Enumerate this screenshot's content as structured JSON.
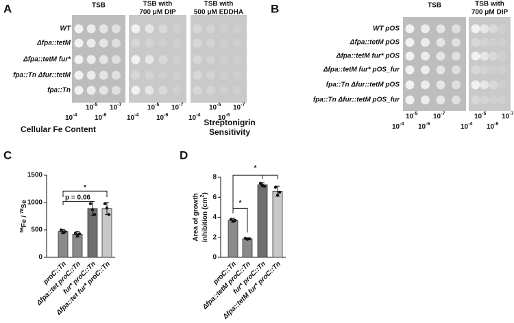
{
  "panels": [
    {
      "letter": "A",
      "strains": [
        "WT",
        "Δfpa::tetM",
        "Δfpa::tetM fur*",
        "fpa::Tn Δfur::tetM",
        "fpa::Tn"
      ],
      "plates": [
        [
          "TSB"
        ],
        [
          "TSB with",
          "700 μM DIP"
        ],
        [
          "TSB with",
          "500 μM EDDHA"
        ]
      ],
      "dilutions": [
        {
          "base": "10",
          "exp": "-5"
        },
        {
          "base": "10",
          "exp": "-7"
        },
        {
          "base": "10",
          "exp": "-4"
        },
        {
          "base": "10",
          "exp": "-6"
        }
      ]
    },
    {
      "letter": "B",
      "strains": [
        "WT pOS",
        "Δfpa::tetM pOS",
        "Δfpa::tetM fur* pOS",
        "Δfpa::tetM fur* pOS_fur",
        "fpa::Tn Δfur::tetM pOS",
        "fpa::Tn Δfur::tetM pOS_fur"
      ],
      "plates": [
        [
          "TSB"
        ],
        [
          "TSB with",
          "700 μM DIP"
        ]
      ],
      "dilutions": [
        {
          "base": "10",
          "exp": "-5"
        },
        {
          "base": "10",
          "exp": "-7"
        },
        {
          "base": "10",
          "exp": "-4"
        },
        {
          "base": "10",
          "exp": "-6"
        }
      ]
    }
  ],
  "chart_data": [
    {
      "type": "bar",
      "letter": "C",
      "title": [
        "Cellular Fe Content"
      ],
      "ylabel": [
        "56",
        "Fe / ",
        "78",
        "Se"
      ],
      "categories": [
        "proC::Tn",
        "Δfpa::tet proC::Tn",
        "fur* proC::Tn",
        "Δfpa::tet fur* proC::Tn"
      ],
      "values": [
        470,
        420,
        890,
        890
      ],
      "errors": [
        40,
        50,
        130,
        110
      ],
      "points": [
        [
          500,
          460,
          470
        ],
        [
          440,
          390,
          430
        ],
        [
          980,
          870,
          780
        ],
        [
          980,
          900,
          780
        ]
      ],
      "colors": [
        "#8a8a8a",
        "#8a8a8a",
        "#6f6f6f",
        "#c8c8c8"
      ],
      "ylim": [
        0,
        1500
      ],
      "yticks": [
        0,
        500,
        1000,
        1500
      ],
      "annotations": [
        "*",
        "p = 0.06"
      ]
    },
    {
      "type": "bar",
      "letter": "D",
      "title": [
        "Streptonigrin",
        "Sensitivity"
      ],
      "ylabel": [
        "Area of growth",
        "inhibition (cm",
        "2",
        ")"
      ],
      "categories": [
        "proC::Tn",
        "Δfpa::tetM proC::Tn",
        "fur* proC::Tn",
        "Δfpa::tetM fur* proC::Tn"
      ],
      "values": [
        3.7,
        1.85,
        7.25,
        6.6
      ],
      "errors": [
        0.2,
        0.1,
        0.2,
        0.5
      ],
      "points": [
        [
          3.8,
          3.6,
          3.7
        ],
        [
          1.9,
          1.8,
          1.85
        ],
        [
          7.4,
          7.2,
          7.1
        ],
        [
          7.0,
          6.2,
          6.5
        ]
      ],
      "colors": [
        "#8a8a8a",
        "#8a8a8a",
        "#6f6f6f",
        "#c8c8c8"
      ],
      "ylim": [
        0,
        8
      ],
      "yticks": [
        0,
        2,
        4,
        6,
        8
      ],
      "annotations": [
        "*",
        "*"
      ]
    }
  ]
}
